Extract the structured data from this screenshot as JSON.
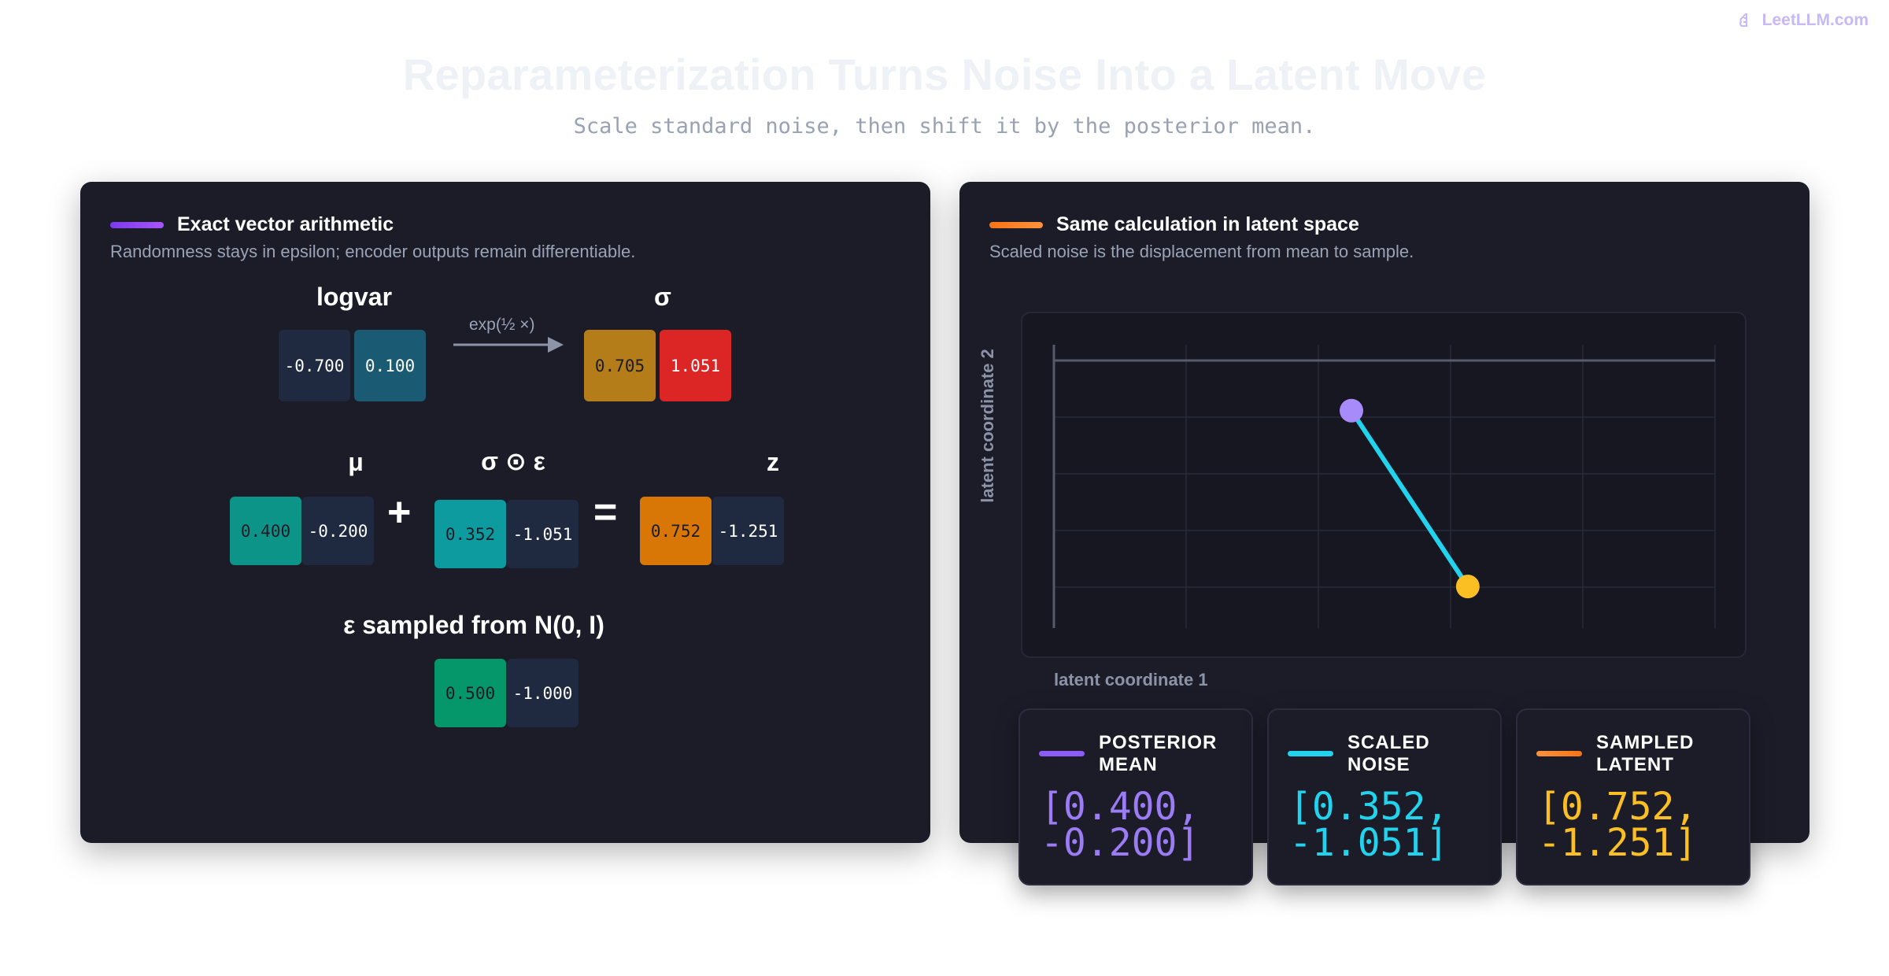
{
  "brand": {
    "name": "LeetLLM.com",
    "icon": "brain-icon"
  },
  "header": {
    "title": "Reparameterization Turns Noise Into a Latent Move",
    "subtitle": "Scale standard noise, then shift it by the posterior mean."
  },
  "left_panel": {
    "title": "Exact vector arithmetic",
    "subtitle": "Randomness stays in epsilon; encoder outputs remain differentiable.",
    "accent": "#8b45e8",
    "logvar": {
      "label": "logvar",
      "values": [
        "-0.700",
        "0.100"
      ]
    },
    "arrow_label": "exp(½ ×)",
    "sigma": {
      "label": "σ",
      "values": [
        "0.705",
        "1.051"
      ]
    },
    "mu": {
      "label": "μ",
      "values": [
        "0.400",
        "-0.200"
      ]
    },
    "plus": "+",
    "scaled": {
      "label": "σ ⊙ ε",
      "values": [
        "0.352",
        "-1.051"
      ]
    },
    "equals": "=",
    "z": {
      "label": "z",
      "values": [
        "0.752",
        "-1.251"
      ]
    },
    "eps": {
      "label": "ε sampled from N(0, I)",
      "values": [
        "0.500",
        "-1.000"
      ]
    },
    "colors": {
      "navy": "#1f2a40",
      "teal_dark": "#1b5a73",
      "gold": "#b57d19",
      "red": "#dc2626",
      "teal": "#0d9488",
      "teal_mid": "#0e9ba0",
      "orange": "#d97706",
      "green": "#059669"
    }
  },
  "right_panel": {
    "title": "Same calculation in latent space",
    "subtitle": "Scaled noise is the displacement from mean to sample.",
    "accent": "#f97316",
    "xlabel": "latent coordinate 1",
    "ylabel": "latent coordinate 2",
    "cards": [
      {
        "title": "POSTERIOR MEAN",
        "value": "[0.400, -0.200]",
        "color": "#9b7cf4"
      },
      {
        "title": "SCALED NOISE",
        "value": "[0.352, -1.051]",
        "color": "#22d3ee"
      },
      {
        "title": "SAMPLED LATENT",
        "value": "[0.752, -1.251]",
        "color": "#fbbf24"
      }
    ]
  },
  "chart_data": {
    "type": "scatter",
    "points": [
      {
        "name": "posterior mean",
        "x": 0.4,
        "y": -0.2,
        "color": "#a78bfa"
      },
      {
        "name": "sampled latent",
        "x": 0.752,
        "y": -1.251,
        "color": "#fbbf24"
      }
    ],
    "segment": {
      "from": 0,
      "to": 1,
      "color": "#22d3ee"
    },
    "xlim": [
      -0.5,
      1.5
    ],
    "ylim": [
      -1.5,
      0.1
    ],
    "grid": true
  }
}
